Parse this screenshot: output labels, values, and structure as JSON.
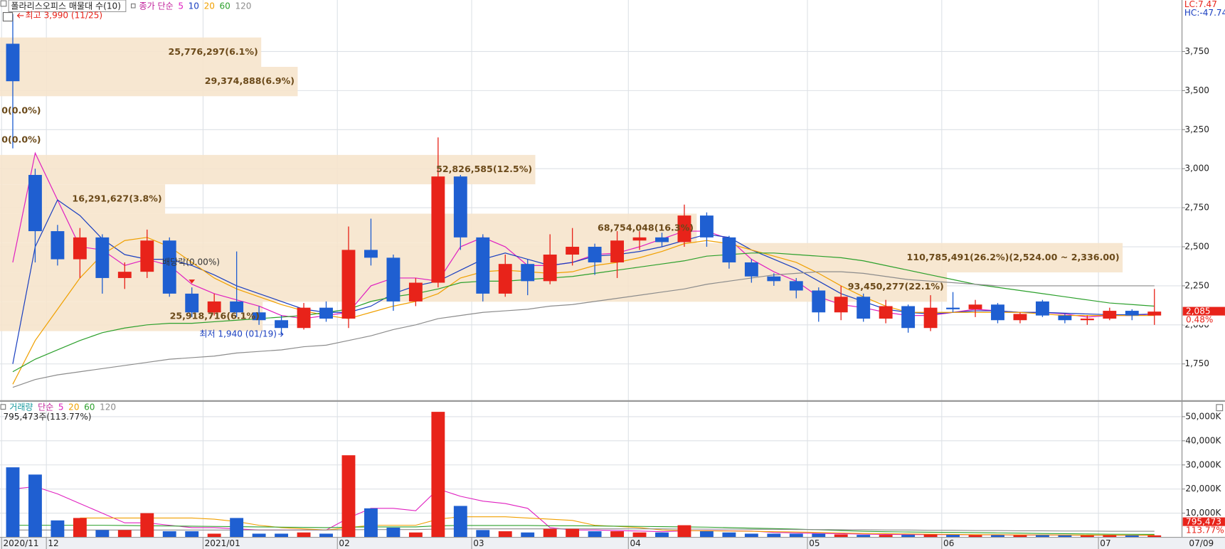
{
  "header": {
    "title": "폴라리스오피스 매물대 수(10)"
  },
  "end_date": "07/09",
  "chart_data": [
    {
      "type": "candlestick",
      "legend_label": "종가 단순",
      "categories": [
        "2020/11",
        null,
        "12",
        null,
        null,
        null,
        null,
        null,
        null,
        "2021/01",
        null,
        null,
        null,
        null,
        null,
        "02",
        null,
        null,
        null,
        null,
        null,
        "03",
        null,
        null,
        null,
        null,
        null,
        null,
        "04",
        null,
        null,
        null,
        null,
        null,
        null,
        null,
        "05",
        null,
        null,
        null,
        null,
        null,
        "06",
        null,
        null,
        null,
        null,
        null,
        null,
        "07",
        null,
        null
      ],
      "open": [
        3800,
        2960,
        2600,
        2420,
        2560,
        2300,
        2340,
        2540,
        2200,
        2080,
        2150,
        2080,
        2030,
        1980,
        2110,
        2040,
        2480,
        2430,
        2150,
        2270,
        2950,
        2560,
        2200,
        2390,
        2280,
        2450,
        2500,
        2400,
        2540,
        2560,
        2530,
        2700,
        2560,
        2400,
        2310,
        2280,
        2220,
        2080,
        2180,
        2040,
        2120,
        1980,
        2110,
        2100,
        2130,
        2030,
        2150,
        2060,
        2030,
        2040,
        2090,
        2060
      ],
      "high": [
        3990,
        3000,
        2640,
        2620,
        2580,
        2400,
        2610,
        2560,
        2240,
        2200,
        2470,
        2120,
        2060,
        2140,
        2150,
        2630,
        2680,
        2450,
        2300,
        3200,
        2960,
        2580,
        2450,
        2420,
        2580,
        2620,
        2520,
        2600,
        2600,
        2590,
        2770,
        2720,
        2570,
        2420,
        2330,
        2300,
        2240,
        2250,
        2200,
        2160,
        2130,
        2190,
        2210,
        2160,
        2140,
        2080,
        2160,
        2070,
        2060,
        2110,
        2100,
        2230
      ],
      "low": [
        3130,
        2400,
        2380,
        2300,
        2200,
        2230,
        2300,
        2180,
        2050,
        2060,
        2050,
        2000,
        1940,
        1970,
        2020,
        1980,
        2380,
        2090,
        2120,
        2240,
        2480,
        2150,
        2180,
        2190,
        2260,
        2380,
        2320,
        2300,
        2480,
        2500,
        2500,
        2500,
        2360,
        2270,
        2250,
        2170,
        2020,
        2030,
        2020,
        2010,
        1950,
        1960,
        2080,
        2050,
        2010,
        2010,
        2050,
        2010,
        2000,
        2030,
        2030,
        2000
      ],
      "close": [
        3560,
        2600,
        2420,
        2560,
        2300,
        2340,
        2540,
        2200,
        2080,
        2150,
        2080,
        2030,
        1980,
        2110,
        2040,
        2480,
        2430,
        2150,
        2270,
        2950,
        2560,
        2200,
        2390,
        2280,
        2450,
        2500,
        2400,
        2540,
        2560,
        2530,
        2700,
        2560,
        2400,
        2310,
        2280,
        2220,
        2080,
        2180,
        2040,
        2120,
        1980,
        2110,
        2100,
        2130,
        2030,
        2070,
        2060,
        2030,
        2040,
        2090,
        2060,
        2085
      ],
      "up_color": "#e8231a",
      "down_color": "#1f5fd1",
      "series": [
        {
          "name": "5",
          "color": "#e020c0",
          "values": [
            2400,
            3100,
            2800,
            2500,
            2480,
            2380,
            2420,
            2380,
            2260,
            2200,
            2160,
            2120,
            2060,
            2040,
            2060,
            2080,
            2250,
            2300,
            2300,
            2280,
            2500,
            2560,
            2500,
            2380,
            2380,
            2400,
            2450,
            2460,
            2500,
            2550,
            2600,
            2600,
            2550,
            2420,
            2340,
            2280,
            2180,
            2130,
            2110,
            2080,
            2060,
            2060,
            2080,
            2100,
            2090,
            2080,
            2080,
            2070,
            2050,
            2060,
            2060,
            2070
          ]
        },
        {
          "name": "10",
          "color": "#1a3fc0",
          "values": [
            1750,
            2500,
            2800,
            2700,
            2550,
            2450,
            2420,
            2420,
            2380,
            2320,
            2250,
            2200,
            2150,
            2100,
            2080,
            2080,
            2120,
            2200,
            2250,
            2280,
            2350,
            2420,
            2460,
            2420,
            2380,
            2400,
            2440,
            2450,
            2470,
            2500,
            2540,
            2580,
            2560,
            2480,
            2420,
            2360,
            2280,
            2200,
            2150,
            2100,
            2080,
            2070,
            2080,
            2090,
            2090,
            2080,
            2080,
            2075,
            2070,
            2065,
            2065,
            2070
          ]
        },
        {
          "name": "20",
          "color": "#f0a000",
          "values": [
            1620,
            1900,
            2100,
            2300,
            2450,
            2540,
            2560,
            2500,
            2400,
            2300,
            2230,
            2180,
            2130,
            2090,
            2060,
            2040,
            2080,
            2120,
            2150,
            2200,
            2300,
            2340,
            2350,
            2340,
            2330,
            2340,
            2380,
            2400,
            2430,
            2470,
            2520,
            2540,
            2520,
            2480,
            2440,
            2400,
            2330,
            2250,
            2180,
            2120,
            2080,
            2080,
            2080,
            2080,
            2080,
            2080,
            2070,
            2060,
            2060,
            2060,
            2060,
            2060
          ]
        },
        {
          "name": "60",
          "color": "#2ca02c",
          "values": [
            1700,
            1780,
            1840,
            1900,
            1950,
            1980,
            2000,
            2010,
            2010,
            2020,
            2030,
            2040,
            2050,
            2060,
            2080,
            2100,
            2150,
            2180,
            2200,
            2230,
            2270,
            2280,
            2280,
            2290,
            2300,
            2310,
            2330,
            2350,
            2370,
            2390,
            2410,
            2440,
            2450,
            2460,
            2460,
            2450,
            2440,
            2430,
            2410,
            2380,
            2350,
            2320,
            2290,
            2260,
            2240,
            2220,
            2200,
            2180,
            2160,
            2140,
            2130,
            2120
          ]
        },
        {
          "name": "120",
          "color": "#8c8c8c",
          "values": [
            1600,
            1650,
            1680,
            1700,
            1720,
            1740,
            1760,
            1780,
            1790,
            1800,
            1820,
            1830,
            1840,
            1860,
            1870,
            1900,
            1930,
            1970,
            2000,
            2040,
            2060,
            2080,
            2090,
            2100,
            2120,
            2130,
            2150,
            2170,
            2190,
            2210,
            2230,
            2260,
            2280,
            2300,
            2320,
            2330,
            2340,
            2340,
            2330,
            2310,
            2290,
            2280,
            2270,
            2260,
            2250,
            2250,
            2250,
            2250,
            2250,
            2250,
            2250,
            2250
          ]
        }
      ],
      "ylim": [
        1520,
        4080
      ],
      "yticks": [
        {
          "value": 1750,
          "label": "1,750"
        },
        {
          "value": 2000,
          "label": "2,000"
        },
        {
          "value": 2250,
          "label": "2,250"
        },
        {
          "value": 2500,
          "label": "2,500"
        },
        {
          "value": 2750,
          "label": "2,750"
        },
        {
          "value": 3000,
          "label": "3,000"
        },
        {
          "value": 3250,
          "label": "3,250"
        },
        {
          "value": 3500,
          "label": "3,500"
        },
        {
          "value": 3750,
          "label": "3,750"
        }
      ],
      "grid": true,
      "volume_profile": {
        "bins": [
          1960,
          2148,
          2336,
          2524,
          2712,
          2900,
          3088,
          3276,
          3464,
          3652,
          3840
        ],
        "values": [
          25918716,
          93450277,
          110785491,
          68754048,
          16291627,
          52826585,
          0,
          0,
          29374888,
          25776297
        ],
        "value_labels": [
          "25,918,716(6.1%)",
          "93,450,277(22.1%)",
          "110,785,491(26.2%)(2,524.00 ~ 2,336.00)",
          "68,754,048(16.3%)",
          "16,291,627(3.8%)",
          "52,826,585(12.5%)",
          "0(0.0%)",
          "0(0.0%)",
          "29,374,888(6.9%)",
          "25,776,297(6.1%)"
        ]
      },
      "annotations": {
        "high": "최고 3,990 (11/25)",
        "low": "최저 1,940 (01/19)",
        "dividend": "배당락(0.00%)"
      },
      "last_close_label": "2,085",
      "change_label": "0.48%",
      "lc_label": "LC:7.47",
      "hc_label": "HC:-47.74"
    },
    {
      "type": "bar",
      "title": "거래량",
      "legend_label": "단순",
      "info": "795,473주(113.77%)",
      "values": [
        29000,
        26000,
        7000,
        8000,
        3000,
        3000,
        10000,
        2500,
        2500,
        1500,
        8000,
        1500,
        1500,
        2000,
        1500,
        34000,
        12000,
        4000,
        2000,
        52000,
        13000,
        3000,
        2500,
        2000,
        3500,
        3500,
        2500,
        2500,
        2000,
        2000,
        5000,
        2500,
        2000,
        1500,
        1500,
        1500,
        1500,
        1200,
        1000,
        1000,
        1000,
        1200,
        1000,
        900,
        900,
        900,
        900,
        800,
        800,
        900,
        800,
        795.473
      ],
      "series": [
        {
          "name": "5",
          "color": "#e020c0",
          "values": [
            20000,
            21000,
            18000,
            14000,
            10000,
            6000,
            6000,
            5000,
            4000,
            4000,
            3500,
            3000,
            3000,
            3000,
            3000,
            8000,
            12000,
            12000,
            11000,
            20000,
            17000,
            15000,
            14000,
            12000,
            4000,
            3000,
            3000,
            2800,
            2600,
            2300,
            2700,
            2800,
            2700,
            2600,
            2000,
            1800,
            1600,
            1500,
            1300,
            1200,
            1100,
            1100,
            1100,
            1000,
            1000,
            900,
            900,
            900,
            850,
            850,
            850,
            830
          ]
        },
        {
          "name": "20",
          "color": "#f0a000",
          "values": [
            null,
            null,
            null,
            8000,
            8000,
            8000,
            8000,
            8000,
            8000,
            7500,
            6500,
            5000,
            4000,
            3500,
            3000,
            4000,
            5000,
            5000,
            5000,
            7500,
            8500,
            8500,
            8500,
            8000,
            7500,
            7000,
            5000,
            4500,
            4000,
            3000,
            2800,
            2700,
            2600,
            2500,
            2300,
            2200,
            2000,
            1800,
            1600,
            1500,
            1400,
            1300,
            1200,
            1100,
            1100,
            1000,
            1000,
            950,
            900,
            900,
            880,
            860
          ]
        },
        {
          "name": "60",
          "color": "#2ca02c",
          "values": [
            5000,
            5000,
            5000,
            5000,
            5000,
            4900,
            4800,
            4700,
            4600,
            4500,
            4400,
            4300,
            4200,
            4100,
            4000,
            4200,
            4300,
            4300,
            4300,
            4800,
            4900,
            4900,
            4900,
            4900,
            4800,
            4800,
            4700,
            4600,
            4500,
            4400,
            4300,
            4200,
            4000,
            3800,
            3600,
            3400,
            3100,
            2800,
            2500,
            2300,
            2200,
            2100,
            2000,
            1900,
            1800,
            1700,
            1600,
            1500,
            1400,
            1300,
            1250,
            1200
          ]
        },
        {
          "name": "120",
          "color": "#8c8c8c",
          "values": [
            3000,
            3000,
            3000,
            3000,
            3000,
            3000,
            3000,
            3000,
            3000,
            3000,
            3000,
            3000,
            3000,
            3000,
            3000,
            3100,
            3200,
            3200,
            3200,
            3400,
            3500,
            3500,
            3500,
            3500,
            3500,
            3500,
            3500,
            3500,
            3500,
            3500,
            3400,
            3400,
            3400,
            3300,
            3300,
            3200,
            3200,
            3100,
            3100,
            3000,
            3000,
            2900,
            2900,
            2800,
            2800,
            2700,
            2700,
            2600,
            2600,
            2500,
            2500,
            2500
          ]
        }
      ],
      "ylim": [
        0,
        56000
      ],
      "yticks": [
        {
          "value": 10000,
          "label": "10,000K"
        },
        {
          "value": 20000,
          "label": "20,000K"
        },
        {
          "value": 30000,
          "label": "30,000K"
        },
        {
          "value": 40000,
          "label": "40,000K"
        },
        {
          "value": 50000,
          "label": "50,000K"
        }
      ],
      "grid": true,
      "last_label": "795,473",
      "ratio_label": "113.77%"
    }
  ]
}
